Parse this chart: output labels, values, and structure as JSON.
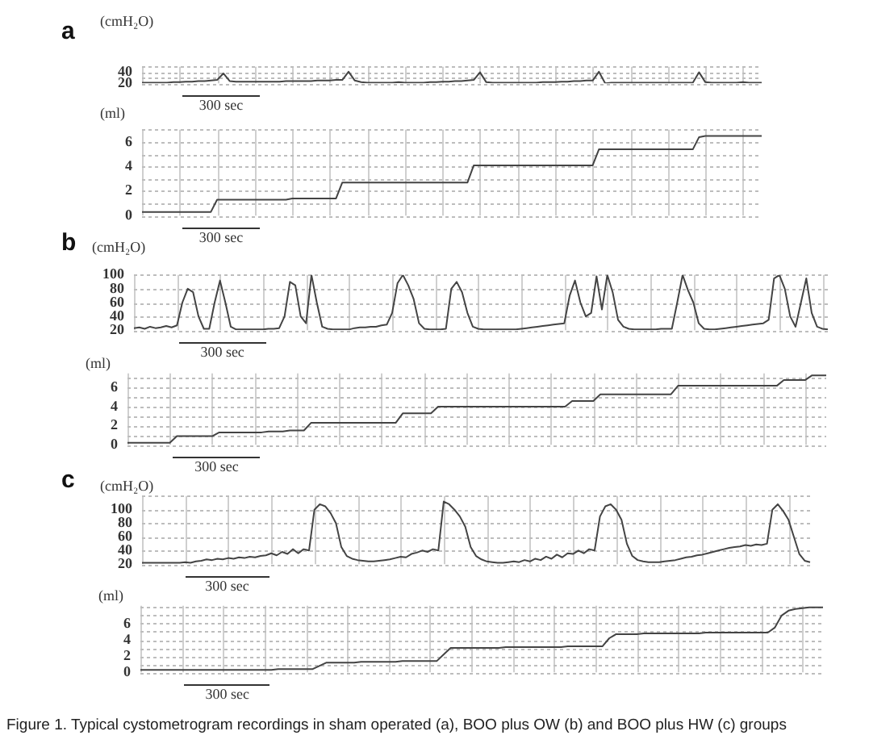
{
  "chart_data": [
    {
      "type": "line",
      "title": "a",
      "ylabel": "(cmH₂O)",
      "color": "#444444",
      "marker": "none",
      "grid": true,
      "tick_labels": "y",
      "ylim": [
        20,
        50
      ],
      "yticks": [
        20,
        {
          "value": 30,
          "label": null
        },
        40,
        {
          "value": 50,
          "label": null
        }
      ],
      "annotations": [
        "300 sec"
      ],
      "categories": [
        null,
        null,
        null,
        null,
        null,
        null,
        null,
        null,
        null,
        null,
        null,
        null,
        null,
        null,
        null,
        null,
        null,
        null,
        null,
        null,
        null,
        null,
        null,
        null,
        null,
        null,
        null,
        null,
        null,
        null,
        null,
        null,
        null,
        null,
        null,
        null,
        null,
        null,
        null,
        null,
        null,
        null,
        null,
        null,
        null,
        null,
        null,
        null,
        null,
        null,
        null,
        null,
        null,
        null,
        null,
        null,
        null,
        null,
        null,
        null,
        null,
        null,
        null,
        null,
        null,
        null,
        null,
        null,
        null,
        null,
        null,
        null,
        null,
        null,
        null,
        null,
        null,
        null,
        null,
        null,
        null,
        null,
        null,
        null,
        null,
        null,
        null,
        null,
        null,
        null,
        null,
        null,
        null,
        null,
        null,
        null,
        null,
        null,
        null,
        null
      ],
      "values": [
        21,
        21,
        21,
        21,
        21,
        22,
        22,
        23,
        23,
        24,
        24,
        25,
        26,
        38,
        24,
        23,
        23,
        23,
        23,
        23,
        23,
        23,
        23,
        24,
        24,
        24,
        24,
        24,
        25,
        25,
        25,
        26,
        26,
        41,
        25,
        22,
        21,
        21,
        21,
        21,
        21,
        22,
        21,
        21,
        21,
        21,
        22,
        22,
        23,
        23,
        24,
        24,
        25,
        26,
        40,
        22,
        21,
        21,
        21,
        21,
        21,
        21,
        21,
        21,
        22,
        22,
        22,
        23,
        23,
        24,
        24,
        25,
        25,
        41,
        20,
        21,
        21,
        21,
        21,
        21,
        21,
        21,
        21,
        21,
        21,
        21,
        21,
        21,
        21,
        40,
        22,
        21,
        21,
        21,
        21,
        21,
        22,
        21,
        21,
        21
      ]
    },
    {
      "type": "line",
      "ylabel": "(ml)",
      "color": "#444444",
      "marker": "none",
      "grid": true,
      "tick_labels": "y",
      "ylim": [
        0,
        7
      ],
      "yticks": [
        0,
        {
          "value": 1,
          "label": null
        },
        2,
        {
          "value": 3,
          "label": null
        },
        4,
        {
          "value": 5,
          "label": null
        },
        6,
        {
          "value": 7,
          "label": null
        }
      ],
      "annotations": [
        "300 sec"
      ],
      "categories": [
        null,
        null,
        null,
        null,
        null,
        null,
        null,
        null,
        null,
        null,
        null,
        null,
        null,
        null,
        null,
        null,
        null,
        null,
        null,
        null,
        null,
        null,
        null,
        null,
        null,
        null,
        null,
        null,
        null,
        null,
        null,
        null,
        null,
        null,
        null,
        null,
        null,
        null,
        null,
        null,
        null,
        null,
        null,
        null,
        null,
        null,
        null,
        null,
        null,
        null,
        null,
        null,
        null,
        null,
        null,
        null,
        null,
        null,
        null,
        null,
        null,
        null,
        null,
        null,
        null,
        null,
        null,
        null,
        null,
        null,
        null,
        null,
        null,
        null,
        null,
        null,
        null,
        null,
        null,
        null,
        null,
        null,
        null,
        null,
        null,
        null,
        null,
        null,
        null,
        null,
        null,
        null,
        null,
        null,
        null,
        null,
        null,
        null,
        null,
        null
      ],
      "values": [
        0.3,
        0.3,
        0.3,
        0.3,
        0.3,
        0.3,
        0.3,
        0.3,
        0.3,
        0.3,
        0.3,
        0.3,
        1.3,
        1.3,
        1.3,
        1.3,
        1.3,
        1.3,
        1.3,
        1.3,
        1.3,
        1.3,
        1.3,
        1.3,
        1.4,
        1.4,
        1.4,
        1.4,
        1.4,
        1.4,
        1.4,
        1.4,
        2.7,
        2.7,
        2.7,
        2.7,
        2.7,
        2.7,
        2.7,
        2.7,
        2.7,
        2.7,
        2.7,
        2.7,
        2.7,
        2.7,
        2.7,
        2.7,
        2.7,
        2.7,
        2.7,
        2.7,
        2.7,
        4.1,
        4.1,
        4.1,
        4.1,
        4.1,
        4.1,
        4.1,
        4.1,
        4.1,
        4.1,
        4.1,
        4.1,
        4.1,
        4.1,
        4.1,
        4.1,
        4.1,
        4.1,
        4.1,
        4.1,
        5.4,
        5.4,
        5.4,
        5.4,
        5.4,
        5.4,
        5.4,
        5.4,
        5.4,
        5.4,
        5.4,
        5.4,
        5.4,
        5.4,
        5.4,
        5.4,
        6.4,
        6.5,
        6.5,
        6.5,
        6.5,
        6.5,
        6.5,
        6.5,
        6.5,
        6.5,
        6.5
      ]
    },
    {
      "type": "line",
      "title": "b",
      "ylabel": "(cmH₂O)",
      "color": "#444444",
      "marker": "none",
      "grid": true,
      "tick_labels": "y",
      "ylim": [
        20,
        100
      ],
      "yticks": [
        20,
        40,
        60,
        80,
        100
      ],
      "annotations": [
        "300 sec"
      ],
      "categories": [
        null,
        null,
        null,
        null,
        null,
        null,
        null,
        null,
        null,
        null,
        null,
        null,
        null,
        null,
        null,
        null,
        null,
        null,
        null,
        null,
        null,
        null,
        null,
        null,
        null,
        null,
        null,
        null,
        null,
        null,
        null,
        null,
        null,
        null,
        null,
        null,
        null,
        null,
        null,
        null,
        null,
        null,
        null,
        null,
        null,
        null,
        null,
        null,
        null,
        null,
        null,
        null,
        null,
        null,
        null,
        null,
        null,
        null,
        null,
        null,
        null,
        null,
        null,
        null,
        null,
        null,
        null,
        null,
        null,
        null,
        null,
        null,
        null,
        null,
        null,
        null,
        null,
        null,
        null,
        null,
        null,
        null,
        null,
        null,
        null,
        null,
        null,
        null,
        null,
        null,
        null,
        null,
        null,
        null,
        null,
        null,
        null,
        null,
        null,
        null,
        null,
        null,
        null,
        null,
        null,
        null,
        null,
        null,
        null,
        null,
        null,
        null,
        null,
        null,
        null,
        null,
        null,
        null,
        null,
        null,
        null,
        null,
        null,
        null,
        null,
        null,
        null,
        null,
        null,
        null
      ],
      "values": [
        23,
        24,
        22,
        25,
        23,
        24,
        26,
        24,
        27,
        60,
        80,
        75,
        40,
        22,
        22,
        60,
        92,
        60,
        25,
        21,
        21,
        21,
        21,
        21,
        21,
        22,
        22,
        23,
        40,
        90,
        85,
        40,
        30,
        100,
        60,
        25,
        22,
        21,
        21,
        21,
        21,
        23,
        24,
        24,
        25,
        25,
        27,
        28,
        45,
        88,
        100,
        85,
        65,
        30,
        22,
        21,
        21,
        21,
        22,
        80,
        90,
        75,
        45,
        25,
        22,
        21,
        21,
        21,
        21,
        21,
        21,
        21,
        22,
        23,
        24,
        25,
        26,
        27,
        28,
        29,
        30,
        70,
        92,
        60,
        40,
        45,
        98,
        50,
        100,
        75,
        35,
        25,
        22,
        21,
        21,
        21,
        21,
        21,
        22,
        22,
        22,
        60,
        100,
        78,
        60,
        30,
        22,
        21,
        21,
        22,
        23,
        24,
        25,
        26,
        27,
        28,
        29,
        30,
        35,
        95,
        100,
        80,
        40,
        25,
        60,
        95,
        45,
        25,
        22,
        21
      ]
    },
    {
      "type": "line",
      "ylabel": "(ml)",
      "color": "#444444",
      "marker": "none",
      "grid": true,
      "tick_labels": "y",
      "ylim": [
        0,
        7.5
      ],
      "yticks": [
        0,
        {
          "value": 1,
          "label": null
        },
        2,
        {
          "value": 3,
          "label": null
        },
        4,
        {
          "value": 5,
          "label": null
        },
        6,
        {
          "value": 7,
          "label": null
        }
      ],
      "annotations": [
        "300 sec"
      ],
      "categories": [
        null,
        null,
        null,
        null,
        null,
        null,
        null,
        null,
        null,
        null,
        null,
        null,
        null,
        null,
        null,
        null,
        null,
        null,
        null,
        null,
        null,
        null,
        null,
        null,
        null,
        null,
        null,
        null,
        null,
        null,
        null,
        null,
        null,
        null,
        null,
        null,
        null,
        null,
        null,
        null,
        null,
        null,
        null,
        null,
        null,
        null,
        null,
        null,
        null,
        null,
        null,
        null,
        null,
        null,
        null,
        null,
        null,
        null,
        null,
        null,
        null,
        null,
        null,
        null,
        null,
        null,
        null,
        null,
        null,
        null,
        null,
        null,
        null,
        null,
        null,
        null,
        null,
        null,
        null,
        null,
        null,
        null,
        null,
        null,
        null,
        null,
        null,
        null,
        null,
        null,
        null,
        null,
        null,
        null,
        null,
        null,
        null,
        null,
        null,
        null
      ],
      "values": [
        0.2,
        0.2,
        0.2,
        0.2,
        0.2,
        0.2,
        0.2,
        0.9,
        0.9,
        0.9,
        0.9,
        0.9,
        0.9,
        1.3,
        1.3,
        1.3,
        1.3,
        1.3,
        1.3,
        1.3,
        1.4,
        1.4,
        1.4,
        1.5,
        1.5,
        1.5,
        2.3,
        2.3,
        2.3,
        2.3,
        2.3,
        2.3,
        2.3,
        2.3,
        2.3,
        2.3,
        2.3,
        2.3,
        2.3,
        3.3,
        3.3,
        3.3,
        3.3,
        3.3,
        4.0,
        4.0,
        4.0,
        4.0,
        4.0,
        4.0,
        4.0,
        4.0,
        4.0,
        4.0,
        4.0,
        4.0,
        4.0,
        4.0,
        4.0,
        4.0,
        4.0,
        4.0,
        4.0,
        4.6,
        4.6,
        4.6,
        4.6,
        5.3,
        5.3,
        5.3,
        5.3,
        5.3,
        5.3,
        5.3,
        5.3,
        5.3,
        5.3,
        5.3,
        6.2,
        6.2,
        6.2,
        6.2,
        6.2,
        6.2,
        6.2,
        6.2,
        6.2,
        6.2,
        6.2,
        6.2,
        6.2,
        6.2,
        6.2,
        6.8,
        6.8,
        6.8,
        6.8,
        7.3,
        7.3,
        7.3
      ]
    },
    {
      "type": "line",
      "title": "c",
      "ylabel": "(cmH₂O)",
      "color": "#444444",
      "marker": "none",
      "grid": true,
      "tick_labels": "y",
      "ylim": [
        20,
        120
      ],
      "yticks": [
        20,
        40,
        60,
        80,
        100,
        {
          "value": 120,
          "label": null
        }
      ],
      "annotations": [
        "300 sec"
      ],
      "categories": [
        null,
        null,
        null,
        null,
        null,
        null,
        null,
        null,
        null,
        null,
        null,
        null,
        null,
        null,
        null,
        null,
        null,
        null,
        null,
        null,
        null,
        null,
        null,
        null,
        null,
        null,
        null,
        null,
        null,
        null,
        null,
        null,
        null,
        null,
        null,
        null,
        null,
        null,
        null,
        null,
        null,
        null,
        null,
        null,
        null,
        null,
        null,
        null,
        null,
        null,
        null,
        null,
        null,
        null,
        null,
        null,
        null,
        null,
        null,
        null,
        null,
        null,
        null,
        null,
        null,
        null,
        null,
        null,
        null,
        null,
        null,
        null,
        null,
        null,
        null,
        null,
        null,
        null,
        null,
        null,
        null,
        null,
        null,
        null,
        null,
        null,
        null,
        null,
        null,
        null,
        null,
        null,
        null,
        null,
        null,
        null,
        null,
        null,
        null,
        null,
        null,
        null,
        null,
        null,
        null,
        null,
        null,
        null,
        null,
        null,
        null,
        null,
        null,
        null,
        null,
        null,
        null,
        null,
        null,
        null,
        null,
        null,
        null,
        null,
        null
      ],
      "values": [
        22,
        22,
        22,
        22,
        22,
        22,
        22,
        22,
        23,
        22,
        24,
        25,
        27,
        26,
        28,
        27,
        29,
        28,
        30,
        29,
        31,
        30,
        32,
        33,
        36,
        33,
        38,
        35,
        42,
        36,
        42,
        40,
        100,
        108,
        105,
        95,
        80,
        45,
        32,
        28,
        26,
        25,
        24,
        24,
        25,
        26,
        27,
        29,
        31,
        30,
        35,
        37,
        40,
        38,
        42,
        40,
        112,
        108,
        100,
        90,
        75,
        45,
        32,
        27,
        24,
        23,
        22,
        22,
        23,
        24,
        23,
        26,
        24,
        28,
        26,
        31,
        28,
        34,
        30,
        36,
        35,
        40,
        36,
        42,
        40,
        90,
        105,
        108,
        100,
        85,
        50,
        32,
        26,
        24,
        23,
        23,
        23,
        24,
        25,
        26,
        28,
        30,
        31,
        33,
        34,
        36,
        38,
        40,
        42,
        44,
        45,
        46,
        48,
        47,
        49,
        48,
        50,
        100,
        108,
        98,
        85,
        60,
        35,
        25,
        23
      ]
    },
    {
      "type": "line",
      "ylabel": "(ml)",
      "color": "#444444",
      "marker": "none",
      "grid": true,
      "tick_labels": "y",
      "ylim": [
        0,
        8.2
      ],
      "yticks": [
        0,
        {
          "value": 1,
          "label": null
        },
        2,
        {
          "value": 3,
          "label": null
        },
        4,
        {
          "value": 5,
          "label": null
        },
        6,
        {
          "value": 7,
          "label": null
        },
        {
          "value": 8,
          "label": null
        }
      ],
      "annotations": [
        "300 sec",
        "Figure 1. Typical cystometrogram recordings in sham operated (a), BOO plus OW (b) and BOO plus HW (c) groups"
      ],
      "categories": [
        null,
        null,
        null,
        null,
        null,
        null,
        null,
        null,
        null,
        null,
        null,
        null,
        null,
        null,
        null,
        null,
        null,
        null,
        null,
        null,
        null,
        null,
        null,
        null,
        null,
        null,
        null,
        null,
        null,
        null,
        null,
        null,
        null,
        null,
        null,
        null,
        null,
        null,
        null,
        null,
        null,
        null,
        null,
        null,
        null,
        null,
        null,
        null,
        null,
        null,
        null,
        null,
        null,
        null,
        null,
        null,
        null,
        null,
        null,
        null,
        null,
        null,
        null,
        null,
        null,
        null,
        null,
        null,
        null,
        null,
        null,
        null,
        null,
        null,
        null,
        null,
        null,
        null,
        null,
        null,
        null,
        null,
        null,
        null,
        null,
        null,
        null,
        null,
        null,
        null,
        null,
        null,
        null,
        null,
        null,
        null,
        null,
        null,
        null,
        null
      ],
      "values": [
        0.3,
        0.3,
        0.3,
        0.3,
        0.3,
        0.3,
        0.3,
        0.3,
        0.3,
        0.3,
        0.3,
        0.3,
        0.3,
        0.3,
        0.3,
        0.3,
        0.3,
        0.3,
        0.3,
        0.3,
        0.4,
        0.4,
        0.4,
        0.4,
        0.4,
        0.4,
        0.8,
        1.2,
        1.2,
        1.2,
        1.2,
        1.2,
        1.3,
        1.3,
        1.3,
        1.3,
        1.3,
        1.3,
        1.4,
        1.4,
        1.4,
        1.4,
        1.4,
        1.4,
        2.2,
        3.0,
        3.0,
        3.0,
        3.0,
        3.0,
        3.0,
        3.0,
        3.0,
        3.1,
        3.1,
        3.1,
        3.1,
        3.1,
        3.1,
        3.1,
        3.1,
        3.1,
        3.2,
        3.2,
        3.2,
        3.2,
        3.2,
        3.2,
        4.2,
        4.7,
        4.7,
        4.7,
        4.7,
        4.8,
        4.8,
        4.8,
        4.8,
        4.8,
        4.8,
        4.8,
        4.8,
        4.8,
        4.9,
        4.9,
        4.9,
        4.9,
        4.9,
        4.9,
        4.9,
        4.9,
        4.9,
        4.9,
        5.5,
        7.0,
        7.6,
        7.8,
        7.9,
        8.0,
        8.0,
        8.0
      ]
    }
  ]
}
